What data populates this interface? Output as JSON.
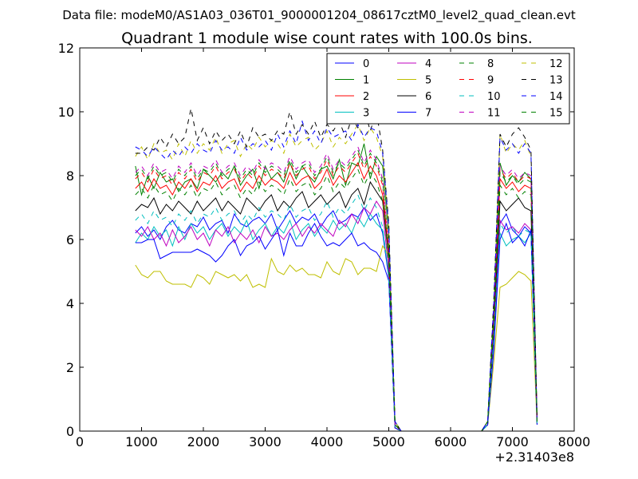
{
  "figure": {
    "suptitle": "Data file: modeM0/AS1A03_036T01_9000001204_08617cztM0_level2_quad_clean.evt"
  },
  "chart_data": {
    "type": "line",
    "title": "Quadrant 1 module wise count rates with 100.0s bins.",
    "xlabel": "",
    "ylabel": "",
    "xlim": [
      0,
      8000
    ],
    "ylim": [
      0,
      12
    ],
    "x_offset_label": "+2.31403e8",
    "xticks": [
      0,
      1000,
      2000,
      3000,
      4000,
      5000,
      6000,
      7000,
      8000
    ],
    "xtick_labels": [
      "0",
      "1000",
      "2000",
      "3000",
      "4000",
      "5000",
      "6000",
      "7000",
      "8000"
    ],
    "yticks": [
      0,
      2,
      4,
      6,
      8,
      10,
      12
    ],
    "ytick_labels": [
      "0",
      "2",
      "4",
      "6",
      "8",
      "10",
      "12"
    ],
    "grid": false,
    "legend_position": "top-right",
    "legend_columns": 4,
    "x": [
      900,
      1000,
      1100,
      1200,
      1300,
      1400,
      1500,
      1600,
      1700,
      1800,
      1900,
      2000,
      2100,
      2200,
      2300,
      2400,
      2500,
      2600,
      2700,
      2800,
      2900,
      3000,
      3100,
      3200,
      3300,
      3400,
      3500,
      3600,
      3700,
      3800,
      3900,
      4000,
      4100,
      4200,
      4300,
      4400,
      4500,
      4600,
      4700,
      4800,
      4900,
      5000,
      5100,
      5200,
      5300,
      5400,
      5500,
      5600,
      5700,
      5800,
      5900,
      6000,
      6100,
      6200,
      6300,
      6400,
      6500,
      6600,
      6700,
      6800,
      6900,
      7000,
      7100,
      7200,
      7300,
      7400
    ],
    "series": [
      {
        "name": "0",
        "color": "#0000ff",
        "style": "solid",
        "values": [
          6.2,
          6.4,
          6.1,
          6.3,
          6.0,
          6.4,
          6.6,
          6.3,
          6.2,
          6.5,
          6.4,
          6.7,
          6.3,
          6.5,
          6.6,
          6.2,
          6.8,
          6.5,
          6.4,
          6.6,
          6.7,
          6.5,
          6.8,
          6.3,
          6.6,
          6.9,
          6.5,
          6.7,
          6.6,
          6.8,
          6.4,
          6.7,
          6.9,
          6.5,
          6.6,
          6.8,
          6.7,
          7.0,
          6.6,
          6.8,
          6.2,
          4.8,
          0.1,
          0,
          0,
          0,
          0,
          0,
          0,
          0,
          0,
          0,
          0,
          0,
          0,
          0,
          0,
          0.2,
          3.0,
          6.5,
          6.8,
          6.3,
          6.1,
          6.4,
          6.2,
          0.2
        ]
      },
      {
        "name": "1",
        "color": "#008000",
        "style": "solid",
        "values": [
          8.3,
          7.4,
          8.0,
          7.6,
          8.1,
          7.8,
          7.9,
          7.5,
          7.8,
          7.9,
          7.6,
          8.2,
          8.0,
          7.8,
          8.1,
          7.9,
          8.3,
          7.7,
          8.0,
          8.2,
          7.6,
          8.3,
          7.9,
          8.1,
          7.8,
          8.4,
          7.9,
          8.3,
          8.0,
          7.8,
          8.2,
          8.3,
          7.9,
          8.5,
          7.7,
          8.4,
          8.3,
          9.0,
          7.9,
          8.6,
          8.3,
          6.2,
          0.3,
          0,
          0,
          0,
          0,
          0,
          0,
          0,
          0,
          0,
          0,
          0,
          0,
          0,
          0,
          0.3,
          3.8,
          8.4,
          7.7,
          8.0,
          7.8,
          8.1,
          7.9,
          0.4
        ]
      },
      {
        "name": "2",
        "color": "#ff0000",
        "style": "solid",
        "values": [
          7.6,
          7.8,
          7.5,
          7.9,
          7.6,
          7.7,
          7.4,
          7.8,
          7.6,
          7.9,
          7.5,
          7.8,
          7.7,
          8.0,
          7.6,
          7.8,
          7.9,
          7.5,
          7.8,
          7.6,
          8.0,
          7.7,
          7.9,
          7.8,
          7.6,
          8.1,
          7.7,
          7.9,
          8.0,
          7.6,
          7.8,
          8.2,
          7.7,
          8.0,
          7.8,
          8.1,
          8.4,
          7.9,
          8.3,
          8.0,
          7.4,
          5.5,
          0.2,
          0,
          0,
          0,
          0,
          0,
          0,
          0,
          0,
          0,
          0,
          0,
          0,
          0,
          0,
          0.3,
          3.5,
          7.9,
          7.6,
          7.8,
          7.5,
          7.7,
          7.6,
          0.3
        ]
      },
      {
        "name": "3",
        "color": "#00bfbf",
        "style": "solid",
        "values": [
          5.9,
          6.2,
          6.0,
          6.4,
          6.1,
          6.3,
          5.8,
          6.4,
          6.0,
          6.5,
          6.2,
          6.4,
          6.0,
          6.3,
          6.5,
          6.1,
          6.4,
          6.2,
          6.6,
          6.0,
          6.3,
          6.5,
          6.1,
          6.4,
          6.2,
          6.6,
          6.0,
          6.3,
          6.5,
          6.1,
          6.4,
          6.2,
          6.6,
          6.3,
          6.5,
          6.2,
          6.7,
          6.4,
          6.8,
          6.5,
          6.3,
          4.9,
          0.1,
          0,
          0,
          0,
          0,
          0,
          0,
          0,
          0,
          0,
          0,
          0,
          0,
          0,
          0,
          0.2,
          2.8,
          6.2,
          5.8,
          6.0,
          6.1,
          5.9,
          6.2,
          0.2
        ]
      },
      {
        "name": "4",
        "color": "#bf00bf",
        "style": "solid",
        "values": [
          6.3,
          6.1,
          6.4,
          6.0,
          6.2,
          5.8,
          6.3,
          5.9,
          6.1,
          6.4,
          6.0,
          6.2,
          5.8,
          6.3,
          6.1,
          6.4,
          5.9,
          6.2,
          6.0,
          6.3,
          5.9,
          6.4,
          6.1,
          6.2,
          6.0,
          6.3,
          6.5,
          6.1,
          6.4,
          6.2,
          6.5,
          6.3,
          6.1,
          6.6,
          6.4,
          6.8,
          6.5,
          7.0,
          6.8,
          7.2,
          6.9,
          5.0,
          0.1,
          0,
          0,
          0,
          0,
          0,
          0,
          0,
          0,
          0,
          0,
          0,
          0,
          0,
          0,
          0.2,
          3.1,
          6.6,
          6.3,
          6.4,
          6.2,
          6.5,
          6.3,
          0.2
        ]
      },
      {
        "name": "5",
        "color": "#bfbf00",
        "style": "solid",
        "values": [
          5.2,
          4.9,
          4.8,
          5.0,
          5.0,
          4.7,
          4.6,
          4.6,
          4.6,
          4.5,
          4.9,
          4.8,
          4.6,
          5.0,
          4.9,
          4.8,
          4.9,
          4.7,
          4.9,
          4.5,
          4.6,
          4.5,
          5.4,
          5.0,
          4.9,
          5.2,
          5.0,
          5.1,
          4.9,
          4.9,
          4.8,
          5.3,
          5.0,
          4.9,
          5.4,
          5.3,
          4.9,
          5.1,
          5.1,
          5.0,
          5.8,
          5.5,
          0.1,
          0,
          0,
          0,
          0,
          0,
          0,
          0,
          0,
          0,
          0,
          0,
          0,
          0,
          0,
          0.2,
          2.2,
          4.5,
          4.6,
          4.8,
          5.0,
          4.9,
          4.7,
          0.2
        ]
      },
      {
        "name": "6",
        "color": "#000000",
        "style": "solid",
        "values": [
          6.9,
          7.1,
          7.0,
          7.3,
          6.8,
          7.1,
          6.9,
          7.2,
          7.0,
          6.8,
          7.2,
          6.9,
          7.1,
          7.3,
          6.9,
          7.2,
          7.0,
          6.8,
          7.3,
          7.1,
          6.9,
          7.2,
          7.4,
          6.9,
          7.2,
          7.0,
          7.3,
          7.5,
          7.0,
          7.2,
          7.4,
          7.1,
          7.3,
          7.5,
          7.0,
          7.4,
          7.6,
          7.1,
          7.8,
          7.5,
          7.2,
          5.4,
          0.2,
          0,
          0,
          0,
          0,
          0,
          0,
          0,
          0,
          0,
          0,
          0,
          0,
          0,
          0,
          0.2,
          3.3,
          7.2,
          6.9,
          7.1,
          7.3,
          7.0,
          6.9,
          0.2
        ]
      },
      {
        "name": "7",
        "color": "#0000ff",
        "style": "solid",
        "values": [
          5.9,
          5.9,
          6.0,
          6.0,
          5.4,
          5.5,
          5.6,
          5.6,
          5.6,
          5.6,
          5.7,
          5.6,
          5.5,
          5.3,
          5.5,
          5.8,
          6.0,
          5.5,
          5.8,
          5.9,
          6.1,
          5.7,
          6.0,
          6.3,
          5.5,
          6.2,
          5.8,
          5.8,
          6.2,
          6.5,
          6.1,
          5.8,
          5.9,
          5.8,
          6.0,
          6.2,
          5.8,
          5.9,
          5.7,
          5.6,
          5.3,
          4.7,
          0.1,
          0,
          0,
          0,
          0,
          0,
          0,
          0,
          0,
          0,
          0,
          0,
          0,
          0,
          0,
          0.2,
          2.6,
          6.0,
          6.5,
          5.9,
          6.1,
          5.8,
          6.3,
          0.2
        ]
      },
      {
        "name": "8",
        "color": "#008000",
        "style": "dashed",
        "values": [
          7.4,
          7.6,
          7.3,
          7.7,
          7.4,
          7.5,
          7.2,
          7.6,
          7.4,
          7.7,
          7.3,
          7.6,
          7.5,
          7.8,
          7.4,
          7.6,
          7.7,
          7.3,
          7.6,
          7.4,
          7.8,
          7.5,
          7.7,
          7.6,
          7.4,
          7.9,
          7.5,
          7.7,
          7.8,
          7.4,
          7.6,
          8.0,
          7.5,
          7.8,
          7.6,
          7.9,
          8.2,
          7.7,
          8.1,
          7.8,
          7.2,
          5.3,
          0.2,
          0,
          0,
          0,
          0,
          0,
          0,
          0,
          0,
          0,
          0,
          0,
          0,
          0,
          0,
          0.3,
          3.4,
          7.7,
          7.4,
          7.6,
          7.3,
          7.5,
          7.4,
          0.3
        ]
      },
      {
        "name": "9",
        "color": "#ff0000",
        "style": "dashed",
        "values": [
          7.9,
          8.1,
          7.8,
          8.2,
          7.9,
          8.0,
          7.7,
          8.1,
          7.9,
          8.2,
          7.8,
          8.1,
          8.0,
          8.3,
          7.9,
          8.1,
          8.2,
          7.8,
          8.1,
          7.9,
          8.3,
          8.0,
          8.2,
          8.1,
          7.9,
          8.4,
          8.0,
          8.2,
          8.3,
          7.9,
          8.1,
          8.5,
          8.0,
          8.3,
          8.1,
          8.4,
          8.7,
          8.2,
          8.6,
          8.3,
          7.7,
          5.7,
          0.2,
          0,
          0,
          0,
          0,
          0,
          0,
          0,
          0,
          0,
          0,
          0,
          0,
          0,
          0,
          0.3,
          3.6,
          8.2,
          7.9,
          8.1,
          7.8,
          8.0,
          7.9,
          0.3
        ]
      },
      {
        "name": "10",
        "color": "#00bfbf",
        "style": "dashed",
        "values": [
          6.6,
          6.8,
          6.5,
          6.9,
          6.6,
          6.7,
          6.4,
          6.8,
          6.6,
          6.9,
          6.5,
          6.8,
          6.7,
          7.0,
          6.6,
          6.8,
          6.9,
          6.5,
          6.8,
          6.6,
          7.0,
          6.7,
          6.9,
          6.8,
          6.6,
          7.1,
          6.7,
          6.9,
          7.0,
          6.6,
          6.8,
          7.2,
          6.7,
          7.0,
          6.8,
          7.1,
          7.4,
          6.9,
          7.3,
          7.0,
          6.4,
          4.8,
          0.1,
          0,
          0,
          0,
          0,
          0,
          0,
          0,
          0,
          0,
          0,
          0,
          0,
          0,
          0,
          0.2,
          3.0,
          6.5,
          6.2,
          6.4,
          6.1,
          6.3,
          6.2,
          0.2
        ]
      },
      {
        "name": "11",
        "color": "#bf00bf",
        "style": "dashed",
        "values": [
          8.1,
          8.3,
          8.0,
          8.4,
          8.1,
          8.2,
          7.9,
          8.3,
          8.1,
          8.4,
          8.0,
          8.3,
          8.2,
          8.5,
          8.1,
          8.3,
          8.4,
          8.0,
          8.3,
          8.1,
          8.5,
          8.2,
          8.4,
          8.3,
          8.1,
          8.6,
          8.2,
          8.4,
          8.5,
          8.1,
          8.3,
          8.7,
          8.2,
          8.5,
          8.3,
          8.6,
          8.9,
          8.4,
          8.8,
          8.5,
          7.9,
          5.8,
          0.2,
          0,
          0,
          0,
          0,
          0,
          0,
          0,
          0,
          0,
          0,
          0,
          0,
          0,
          0,
          0.3,
          3.7,
          8.3,
          8.0,
          8.2,
          7.9,
          8.1,
          8.0,
          0.3
        ]
      },
      {
        "name": "12",
        "color": "#bfbf00",
        "style": "dashed",
        "values": [
          8.6,
          8.9,
          8.5,
          9.0,
          8.7,
          8.8,
          8.5,
          9.0,
          8.6,
          9.1,
          8.7,
          9.0,
          8.8,
          9.2,
          8.7,
          9.0,
          9.1,
          8.6,
          9.0,
          8.8,
          9.2,
          8.9,
          9.1,
          9.0,
          8.7,
          9.3,
          8.9,
          9.1,
          9.2,
          8.8,
          9.0,
          9.4,
          8.9,
          9.2,
          9.0,
          9.3,
          9.6,
          9.1,
          9.5,
          9.2,
          8.6,
          6.3,
          0.3,
          0,
          0,
          0,
          0,
          0,
          0,
          0,
          0,
          0,
          0,
          0,
          0,
          0,
          0,
          0.3,
          4.0,
          9.3,
          8.7,
          9.0,
          8.8,
          9.1,
          8.6,
          0.3
        ]
      },
      {
        "name": "13",
        "color": "#000000",
        "style": "dashed",
        "values": [
          8.7,
          8.7,
          8.9,
          8.8,
          9.2,
          8.9,
          9.3,
          9.0,
          9.2,
          10.1,
          9.1,
          9.5,
          9.0,
          9.4,
          9.1,
          9.3,
          9.0,
          9.4,
          8.9,
          9.5,
          9.2,
          9.3,
          9.1,
          9.4,
          9.3,
          10.0,
          9.3,
          9.6,
          9.3,
          9.7,
          9.2,
          9.6,
          9.4,
          9.7,
          9.2,
          9.8,
          9.5,
          10.1,
          9.4,
          10.0,
          8.8,
          6.5,
          0.3,
          0,
          0,
          0,
          0,
          0,
          0,
          0,
          0,
          0,
          0,
          0,
          0,
          0,
          0,
          0.3,
          4.2,
          9.3,
          8.9,
          9.3,
          9.5,
          9.2,
          8.8,
          0.3
        ]
      },
      {
        "name": "14",
        "color": "#0000ff",
        "style": "dashed",
        "values": [
          8.9,
          8.8,
          8.6,
          8.9,
          8.7,
          8.5,
          8.8,
          8.6,
          8.9,
          8.7,
          9.0,
          8.8,
          8.7,
          9.1,
          8.8,
          8.9,
          8.7,
          9.2,
          8.8,
          9.0,
          8.9,
          9.1,
          8.8,
          9.3,
          8.9,
          9.4,
          9.0,
          9.7,
          9.1,
          9.4,
          9.0,
          9.5,
          9.2,
          9.3,
          9.4,
          9.1,
          9.6,
          9.2,
          9.5,
          9.4,
          8.7,
          6.4,
          0.3,
          0,
          0,
          0,
          0,
          0,
          0,
          0,
          0,
          0,
          0,
          0,
          0,
          0,
          0,
          0.3,
          4.1,
          9.2,
          8.8,
          9.0,
          8.7,
          9.0,
          8.7,
          0.3
        ]
      },
      {
        "name": "15",
        "color": "#008000",
        "style": "dashed",
        "values": [
          8.0,
          8.2,
          7.9,
          8.3,
          8.0,
          8.1,
          7.8,
          8.2,
          8.0,
          8.3,
          7.9,
          8.2,
          8.1,
          8.4,
          8.0,
          8.2,
          8.3,
          7.9,
          8.2,
          8.0,
          8.4,
          8.1,
          8.3,
          8.2,
          8.0,
          8.5,
          8.1,
          8.3,
          8.4,
          8.0,
          8.2,
          8.6,
          8.1,
          8.4,
          8.2,
          8.5,
          8.8,
          8.3,
          8.7,
          8.4,
          7.8,
          5.8,
          0.2,
          0,
          0,
          0,
          0,
          0,
          0,
          0,
          0,
          0,
          0,
          0,
          0,
          0,
          0,
          0.3,
          3.7,
          8.1,
          7.8,
          8.0,
          7.7,
          7.9,
          7.8,
          0.3
        ]
      }
    ]
  }
}
